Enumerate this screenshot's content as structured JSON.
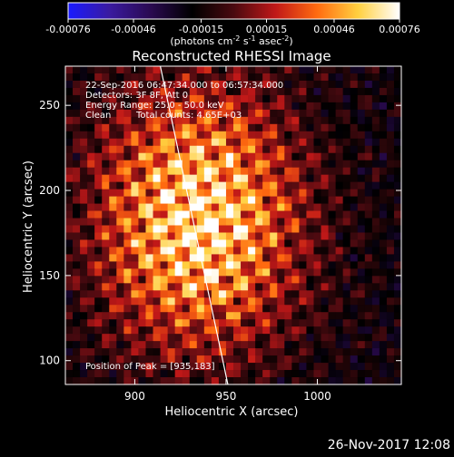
{
  "chart_data": {
    "type": "heatmap",
    "title": "Reconstructed RHESSI Image",
    "xlabel": "Heliocentric X (arcsec)",
    "ylabel": "Heliocentric Y (arcsec)",
    "xlim": [
      862,
      1046
    ],
    "ylim": [
      86,
      273
    ],
    "x_ticks": [
      900,
      950,
      1000
    ],
    "y_ticks": [
      100,
      150,
      200,
      250
    ],
    "x_tick_labels": [
      "900",
      "950",
      "1000"
    ],
    "y_tick_labels": [
      "100",
      "150",
      "200",
      "250"
    ],
    "colorbar": {
      "min": -0.00076,
      "max": 0.00076,
      "ticks": [
        -0.00076,
        -0.00046,
        -0.00015,
        0.00015,
        0.00046,
        0.00076
      ],
      "tick_labels": [
        "-0.00076",
        "-0.00046",
        "-0.00015",
        "0.00015",
        "0.00046",
        "0.00076"
      ],
      "unit_label_parts": [
        "(photons cm",
        "-2",
        " s",
        "-1",
        " asec",
        "-2",
        ")"
      ],
      "colormap": [
        "#1a1aff",
        "#3a1aa0",
        "#2a0a50",
        "#000000",
        "#4a0a10",
        "#c01818",
        "#ff6a10",
        "#ffd040",
        "#ffffff"
      ]
    },
    "annotations": {
      "time_range": "22-Sep-2016 06:47:34.000 to 06:57:34.000",
      "detectors": "Detectors: 3F 8F, Att 0",
      "energy": "Energy Range: 25.0 - 50.0 keV",
      "method": "Clean",
      "counts": "Total counts: 4.65E+03",
      "peak": "Position of Peak = [935,183]"
    },
    "peak": {
      "x": 935,
      "y": 183
    },
    "limb_line": {
      "x": [
        914,
        951
      ],
      "y": [
        273,
        86
      ]
    },
    "grid": false
  },
  "footer": {
    "timestamp": "26-Nov-2017 12:08"
  }
}
